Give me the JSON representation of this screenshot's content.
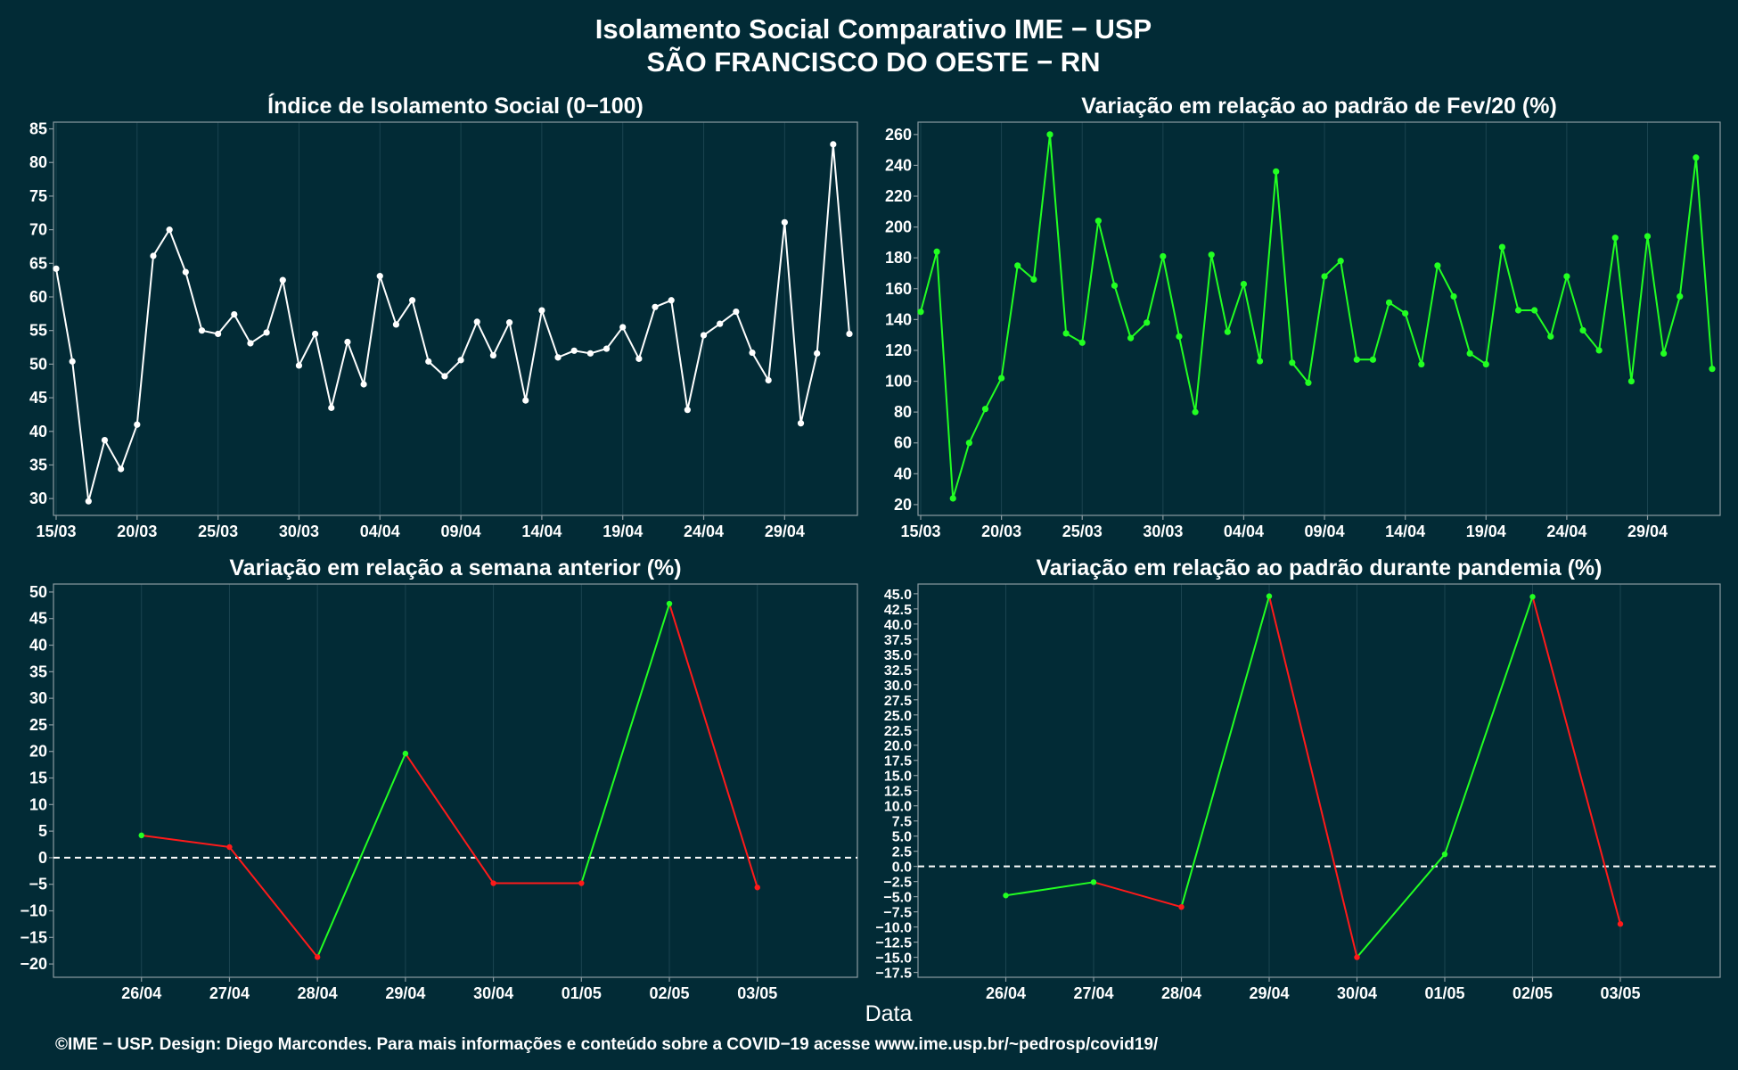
{
  "title_line1": "Isolamento Social Comparativo IME − USP",
  "title_line2": "SÃO FRANCISCO DO OESTE − RN",
  "footer": "©IME − USP. Design: Diego Marcondes. Para mais informações e conteúdo sobre a COVID−19 acesse www.ime.usp.br/~pedrosp/covid19/",
  "xlabel": "Data",
  "colors": {
    "background": "#022b36",
    "white": "#ffffff",
    "green": "#22ff22",
    "red": "#ff1a1a"
  },
  "chart_data": [
    {
      "type": "line",
      "title": "Índice de Isolamento Social (0−100)",
      "x_ticks": [
        "15/03",
        "20/03",
        "25/03",
        "30/03",
        "04/04",
        "09/04",
        "14/04",
        "19/04",
        "24/04",
        "29/04"
      ],
      "y_ticks": [
        30,
        35,
        40,
        45,
        50,
        55,
        60,
        65,
        70,
        75,
        80,
        85
      ],
      "ylim": [
        27.5,
        86
      ],
      "x_start": "15/03",
      "values": [
        64.2,
        50.4,
        29.6,
        38.7,
        34.4,
        41.0,
        66.1,
        70.0,
        63.7,
        55.0,
        54.5,
        57.4,
        53.1,
        54.7,
        62.5,
        49.8,
        54.5,
        43.5,
        53.3,
        47.0,
        63.1,
        55.9,
        59.5,
        50.4,
        48.2,
        50.6,
        56.3,
        51.3,
        56.2,
        44.6,
        58.0,
        51.0,
        52.0,
        51.6,
        52.3,
        55.5,
        50.8,
        58.5,
        59.5,
        43.2,
        54.3,
        56.0,
        57.8,
        51.7,
        47.6,
        71.1,
        41.2,
        51.6,
        82.7,
        54.5
      ],
      "color": "#ffffff"
    },
    {
      "type": "line",
      "title": "Variação em relação ao padrão de Fev/20 (%)",
      "x_ticks": [
        "15/03",
        "20/03",
        "25/03",
        "30/03",
        "04/04",
        "09/04",
        "14/04",
        "19/04",
        "24/04",
        "29/04"
      ],
      "y_ticks": [
        20,
        40,
        60,
        80,
        100,
        120,
        140,
        160,
        180,
        200,
        220,
        240,
        260
      ],
      "ylim": [
        13,
        268
      ],
      "x_start": "15/03",
      "values": [
        145,
        184,
        24,
        60,
        82,
        102,
        175,
        166,
        260,
        131,
        125,
        204,
        162,
        128,
        138,
        181,
        129,
        80,
        182,
        132,
        163,
        113,
        236,
        112,
        99,
        168,
        178,
        114,
        114,
        151,
        144,
        111,
        175,
        155,
        118,
        111,
        187,
        146,
        146,
        129,
        168,
        133,
        120,
        193,
        100,
        194,
        118,
        155,
        245,
        108
      ],
      "color": "#22ff22"
    },
    {
      "type": "line",
      "title": "Variação em relação a semana anterior (%)",
      "categories": [
        "26/04",
        "27/04",
        "28/04",
        "29/04",
        "30/04",
        "01/05",
        "02/05",
        "03/05"
      ],
      "values": [
        4.2,
        2.0,
        -18.7,
        19.6,
        -4.8,
        -4.8,
        47.8,
        -5.6
      ],
      "y_ticks": [
        -20,
        -15,
        -10,
        -5,
        0,
        5,
        10,
        15,
        20,
        25,
        30,
        35,
        40,
        45,
        50
      ],
      "ylim": [
        -22.5,
        51.5
      ],
      "reference_line": 0,
      "increase_color": "#22ff22",
      "decrease_color": "#ff1a1a"
    },
    {
      "type": "line",
      "title": "Variação em relação ao padrão durante pandemia (%)",
      "categories": [
        "26/04",
        "27/04",
        "28/04",
        "29/04",
        "30/04",
        "01/05",
        "02/05",
        "03/05"
      ],
      "values": [
        -4.8,
        -2.6,
        -6.7,
        44.6,
        -15.0,
        2.0,
        44.5,
        -9.5
      ],
      "y_ticks": [
        -17.5,
        -15.0,
        -12.5,
        -10.0,
        -7.5,
        -5.0,
        -2.5,
        0.0,
        2.5,
        5.0,
        7.5,
        10.0,
        12.5,
        15.0,
        17.5,
        20.0,
        22.5,
        25.0,
        27.5,
        30.0,
        32.5,
        35.0,
        37.5,
        40.0,
        42.5,
        45.0
      ],
      "y_tick_labels": [
        "−17.5",
        "−15.0",
        "−12.5",
        "−10.0",
        "−7.5",
        "−5.0",
        "−2.5",
        "0.0",
        "2.5",
        "5.0",
        "7.5",
        "10.0",
        "12.5",
        "15.0",
        "17.5",
        "20.0",
        "22.5",
        "25.0",
        "27.5",
        "30.0",
        "32.5",
        "35.0",
        "37.5",
        "40.0",
        "42.5",
        "45.0"
      ],
      "ylim": [
        -18.3,
        46.6
      ],
      "reference_line": 0,
      "increase_color": "#22ff22",
      "decrease_color": "#ff1a1a"
    }
  ]
}
